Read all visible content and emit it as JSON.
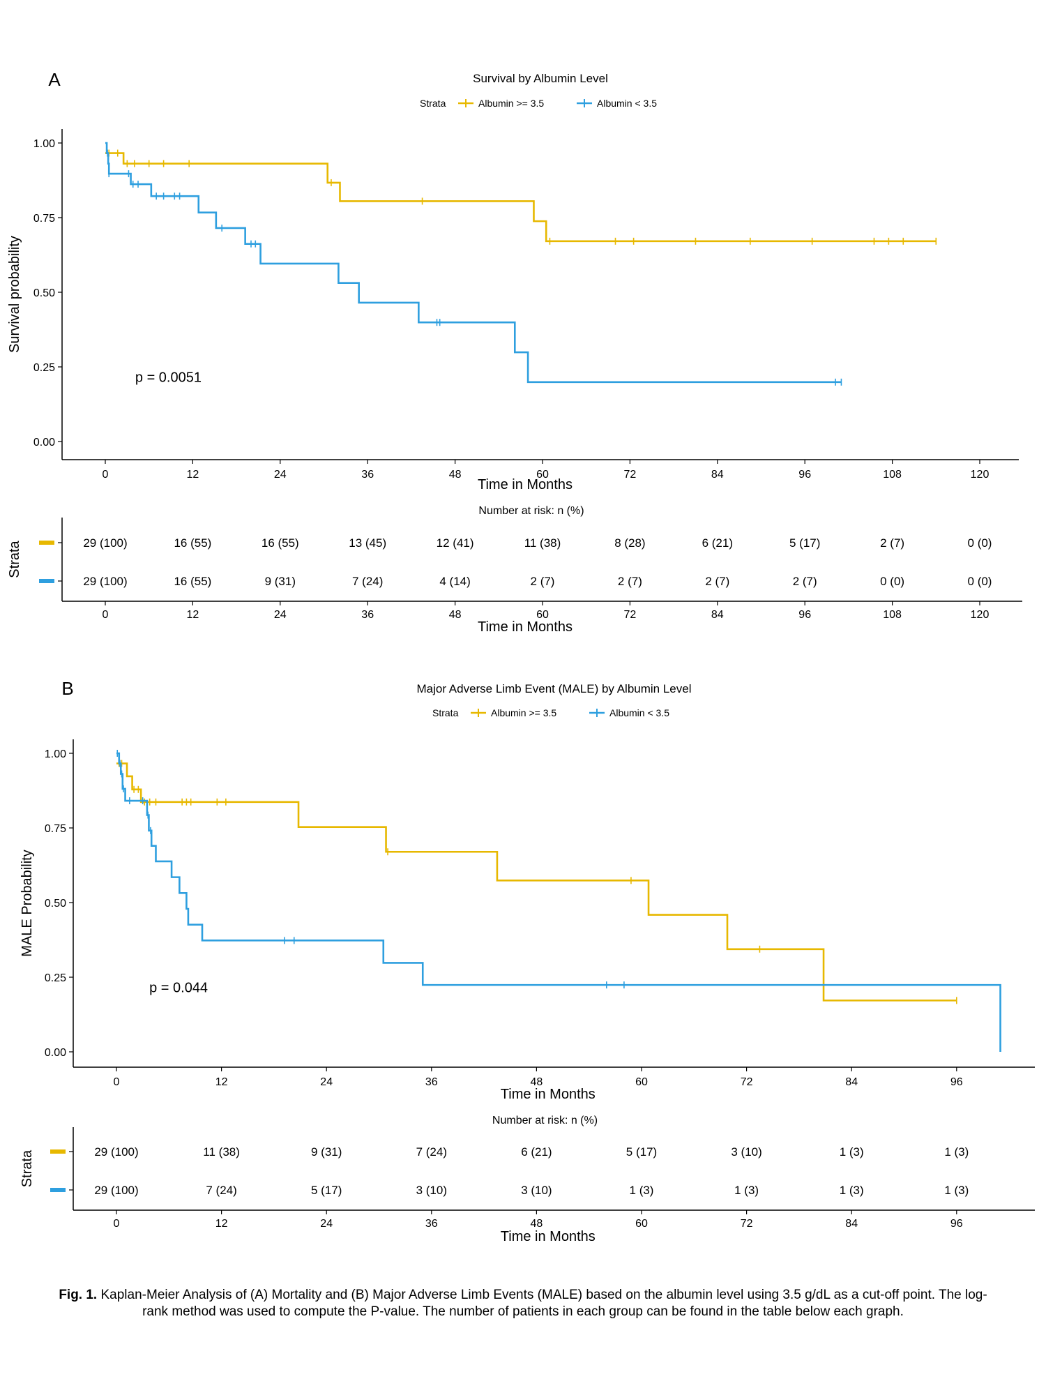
{
  "caption": {
    "label": "Fig. 1.",
    "text": "Kaplan-Meier Analysis of (A) Mortality and (B) Major Adverse Limb Events (MALE) based on the albumin level using 3.5 g/dL as a cut-off point. The log-rank method was used to compute the P-value. The number of patients in each group can be found in the table below each graph."
  },
  "colors": {
    "group1": "#E7B800",
    "group2": "#2E9FDF",
    "axis": "#000000"
  },
  "chart_data": [
    {
      "type": "line",
      "panel_label": "A",
      "title": "Survival by Albumin Level",
      "legend_title": "Strata",
      "legend_position": "top",
      "xlabel": "Time in Months",
      "ylabel": "Survival probability",
      "xlim": [
        0,
        120
      ],
      "ylim": [
        0,
        1
      ],
      "xticks": [
        0,
        12,
        24,
        36,
        48,
        60,
        72,
        84,
        96,
        108,
        120
      ],
      "yticks": [
        "0.00",
        "0.25",
        "0.50",
        "0.75",
        "1.00"
      ],
      "pvalue_text": "p = 0.0051",
      "pvalue_pos": [
        2,
        0.2
      ],
      "series": [
        {
          "name": "Albumin >= 3.5",
          "color": "#E7B800",
          "steps": [
            [
              0,
              0.966
            ],
            [
              2.5,
              0.931
            ],
            [
              30.5,
              0.867
            ],
            [
              32.2,
              0.805
            ],
            [
              58.8,
              0.738
            ],
            [
              60.5,
              0.671
            ],
            [
              114,
              0.671
            ]
          ],
          "censor": [
            [
              0.5,
              0.966
            ],
            [
              1.7,
              0.966
            ],
            [
              3.0,
              0.931
            ],
            [
              4,
              0.931
            ],
            [
              6,
              0.931
            ],
            [
              8,
              0.931
            ],
            [
              11.5,
              0.931
            ],
            [
              31,
              0.867
            ],
            [
              43.5,
              0.805
            ],
            [
              61,
              0.671
            ],
            [
              70,
              0.671
            ],
            [
              72.5,
              0.671
            ],
            [
              81,
              0.671
            ],
            [
              88.5,
              0.671
            ],
            [
              97,
              0.671
            ],
            [
              105.5,
              0.671
            ],
            [
              107.5,
              0.671
            ],
            [
              109.5,
              0.671
            ],
            [
              114,
              0.671
            ]
          ]
        },
        {
          "name": "Albumin < 3.5",
          "color": "#2E9FDF",
          "steps": [
            [
              0,
              1.0
            ],
            [
              0.2,
              0.966
            ],
            [
              0.4,
              0.931
            ],
            [
              0.5,
              0.897
            ],
            [
              3.5,
              0.862
            ],
            [
              6.3,
              0.822
            ],
            [
              12.8,
              0.767
            ],
            [
              15.2,
              0.715
            ],
            [
              19.2,
              0.662
            ],
            [
              21.3,
              0.596
            ],
            [
              32.0,
              0.531
            ],
            [
              34.8,
              0.465
            ],
            [
              43.0,
              0.399
            ],
            [
              56.2,
              0.299
            ],
            [
              58.0,
              0.199
            ],
            [
              101,
              0.199
            ]
          ],
          "censor": [
            [
              0.3,
              0.966
            ],
            [
              0.5,
              0.897
            ],
            [
              3.2,
              0.897
            ],
            [
              3.8,
              0.862
            ],
            [
              4.5,
              0.862
            ],
            [
              7.0,
              0.822
            ],
            [
              8.0,
              0.822
            ],
            [
              9.5,
              0.822
            ],
            [
              10.2,
              0.822
            ],
            [
              16.0,
              0.715
            ],
            [
              20.0,
              0.662
            ],
            [
              20.6,
              0.662
            ],
            [
              45.5,
              0.399
            ],
            [
              45.9,
              0.399
            ],
            [
              100.2,
              0.199
            ],
            [
              101,
              0.199
            ]
          ]
        }
      ],
      "risk_table": {
        "title": "Number at risk: n (%)",
        "xlabel": "Time in Months",
        "ylabel": "Strata",
        "times": [
          0,
          12,
          24,
          36,
          48,
          60,
          72,
          84,
          96,
          108,
          120
        ],
        "rows": [
          [
            "29 (100)",
            "16 (55)",
            "16 (55)",
            "13 (45)",
            "12 (41)",
            "11 (38)",
            "8 (28)",
            "6 (21)",
            "5 (17)",
            "2 (7)",
            "0 (0)"
          ],
          [
            "29 (100)",
            "16 (55)",
            "9 (31)",
            "7 (24)",
            "4 (14)",
            "2 (7)",
            "2 (7)",
            "2 (7)",
            "2 (7)",
            "0 (0)",
            "0 (0)"
          ]
        ]
      }
    },
    {
      "type": "line",
      "panel_label": "B",
      "title": "Major Adverse Limb Event (MALE) by Albumin Level",
      "legend_title": "Strata",
      "legend_position": "top",
      "xlabel": "Time in Months",
      "ylabel": "MALE Probability",
      "xlim": [
        0,
        101
      ],
      "ylim": [
        0,
        1
      ],
      "xticks": [
        0,
        12,
        24,
        36,
        48,
        60,
        72,
        84,
        96
      ],
      "yticks": [
        "0.00",
        "0.25",
        "0.50",
        "0.75",
        "1.00"
      ],
      "pvalue_text": "p = 0.044",
      "pvalue_pos": [
        2,
        0.2
      ],
      "series": [
        {
          "name": "Albumin >= 3.5",
          "color": "#E7B800",
          "steps": [
            [
              0,
              0.966
            ],
            [
              1.2,
              0.923
            ],
            [
              1.8,
              0.879
            ],
            [
              2.8,
              0.837
            ],
            [
              20.8,
              0.753
            ],
            [
              30.8,
              0.67
            ],
            [
              43.5,
              0.574
            ],
            [
              60.8,
              0.459
            ],
            [
              69.8,
              0.344
            ],
            [
              80.8,
              0.172
            ],
            [
              96,
              0.172
            ]
          ],
          "censor": [
            [
              0.3,
              0.966
            ],
            [
              0.6,
              0.966
            ],
            [
              2.0,
              0.879
            ],
            [
              2.5,
              0.879
            ],
            [
              3.2,
              0.837
            ],
            [
              3.8,
              0.837
            ],
            [
              4.5,
              0.837
            ],
            [
              7.5,
              0.837
            ],
            [
              8.0,
              0.837
            ],
            [
              8.5,
              0.837
            ],
            [
              11.5,
              0.837
            ],
            [
              12.5,
              0.837
            ],
            [
              31.0,
              0.67
            ],
            [
              58.8,
              0.574
            ],
            [
              73.5,
              0.344
            ],
            [
              96,
              0.172
            ]
          ]
        },
        {
          "name": "Albumin < 3.5",
          "color": "#2E9FDF",
          "steps": [
            [
              0,
              1.0
            ],
            [
              0.3,
              0.966
            ],
            [
              0.5,
              0.931
            ],
            [
              0.7,
              0.881
            ],
            [
              1.0,
              0.841
            ],
            [
              3.5,
              0.793
            ],
            [
              3.7,
              0.741
            ],
            [
              4.0,
              0.69
            ],
            [
              4.5,
              0.638
            ],
            [
              6.3,
              0.585
            ],
            [
              7.2,
              0.532
            ],
            [
              8.0,
              0.479
            ],
            [
              8.2,
              0.426
            ],
            [
              9.8,
              0.373
            ],
            [
              30.5,
              0.298
            ],
            [
              35.0,
              0.224
            ],
            [
              101,
              0.224
            ],
            [
              101,
              0.0
            ]
          ],
          "censor": [
            [
              0.1,
              1.0
            ],
            [
              0.4,
              0.966
            ],
            [
              0.6,
              0.931
            ],
            [
              0.8,
              0.881
            ],
            [
              1.5,
              0.841
            ],
            [
              3.0,
              0.841
            ],
            [
              3.6,
              0.793
            ],
            [
              3.9,
              0.741
            ],
            [
              19.2,
              0.373
            ],
            [
              20.3,
              0.373
            ],
            [
              56.0,
              0.224
            ],
            [
              58.0,
              0.224
            ]
          ]
        }
      ],
      "risk_table": {
        "title": "Number at risk: n (%)",
        "xlabel": "Time in Months",
        "ylabel": "Strata",
        "times": [
          0,
          12,
          24,
          36,
          48,
          60,
          72,
          84,
          96
        ],
        "rows": [
          [
            "29 (100)",
            "11 (38)",
            "9 (31)",
            "7 (24)",
            "6 (21)",
            "5 (17)",
            "3 (10)",
            "1 (3)",
            "1 (3)"
          ],
          [
            "29 (100)",
            "7 (24)",
            "5 (17)",
            "3 (10)",
            "3 (10)",
            "1 (3)",
            "1 (3)",
            "1 (3)",
            "1 (3)"
          ]
        ]
      }
    }
  ]
}
